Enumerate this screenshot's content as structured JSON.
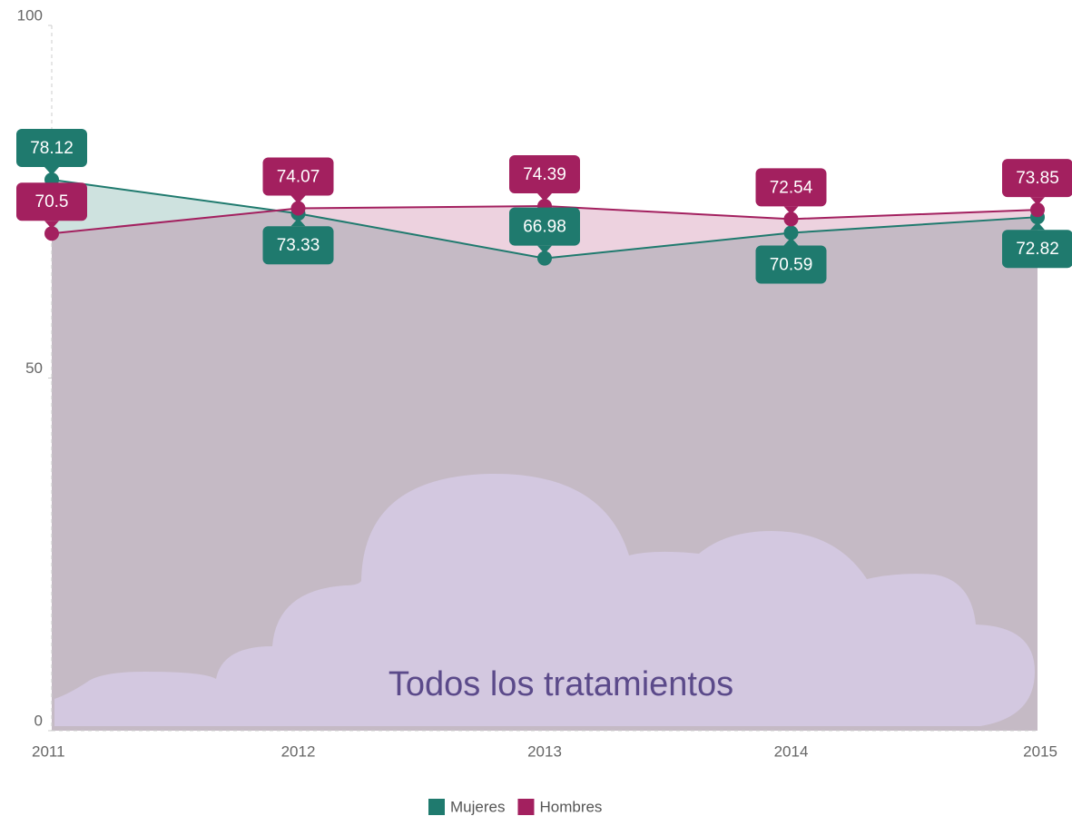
{
  "chart_data": {
    "type": "area",
    "title": "Todos los tratamientos",
    "categories": [
      "2011",
      "2012",
      "2013",
      "2014",
      "2015"
    ],
    "series": [
      {
        "name": "Mujeres",
        "color": "#1f7a6e",
        "values": [
          78.12,
          73.33,
          66.98,
          70.59,
          72.82
        ]
      },
      {
        "name": "Hombres",
        "color": "#a3205f",
        "values": [
          70.5,
          74.07,
          74.39,
          72.54,
          73.85
        ]
      }
    ],
    "ylim": [
      0,
      100
    ],
    "yticks": [
      0,
      50,
      100
    ],
    "legend": "bottom"
  }
}
